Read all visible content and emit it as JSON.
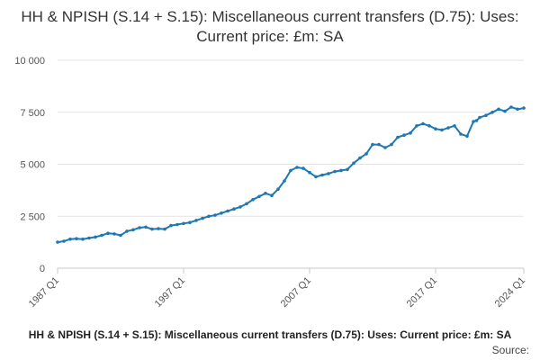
{
  "chart_data": {
    "type": "line",
    "title": "HH & NPISH (S.14 + S.15): Miscellaneous current transfers (D.75): Uses: Current price: £m: SA",
    "xlabel": "",
    "ylabel": "",
    "ylim": [
      0,
      10000
    ],
    "yticks": [
      "0",
      "2 500",
      "5 000",
      "7 500",
      "10 000"
    ],
    "ytick_values": [
      0,
      2500,
      5000,
      7500,
      10000
    ],
    "xticks": [
      "1987 Q1",
      "1997 Q1",
      "2007 Q1",
      "2017 Q1",
      "2024 Q1"
    ],
    "xtick_values": [
      1987.0,
      1997.0,
      2007.0,
      2017.0,
      2024.0
    ],
    "xlim": [
      1987.0,
      2024.0
    ],
    "grid": "horizontal",
    "legend": "none",
    "series_color": "#1f78b4",
    "series": [
      {
        "x": [
          1987.0,
          1987.5,
          1988.0,
          1988.5,
          1989.0,
          1989.5,
          1990.0,
          1990.5,
          1991.0,
          1991.5,
          1992.0,
          1992.5,
          1993.0,
          1993.5,
          1994.0,
          1994.5,
          1995.0,
          1995.5,
          1996.0,
          1996.5,
          1997.0,
          1997.5,
          1998.0,
          1998.5,
          1999.0,
          1999.5,
          2000.0,
          2000.5,
          2001.0,
          2001.5,
          2002.0,
          2002.5,
          2003.0,
          2003.5,
          2004.0,
          2004.5,
          2005.0,
          2005.5,
          2006.0,
          2006.5,
          2007.0,
          2007.5,
          2008.0,
          2008.5,
          2009.0,
          2009.5,
          2010.0,
          2010.5,
          2011.0,
          2011.5,
          2012.0,
          2012.5,
          2013.0,
          2013.5,
          2014.0,
          2014.5,
          2015.0,
          2015.5,
          2016.0,
          2016.5,
          2017.0,
          2017.5,
          2018.0,
          2018.5,
          2019.0,
          2019.5,
          2020.0,
          2020.25,
          2020.5,
          2021.0,
          2021.5,
          2022.0,
          2022.5,
          2023.0,
          2023.5,
          2024.0
        ],
        "values": [
          1250,
          1300,
          1400,
          1420,
          1400,
          1450,
          1500,
          1580,
          1680,
          1650,
          1580,
          1780,
          1850,
          1950,
          1980,
          1880,
          1900,
          1880,
          2050,
          2100,
          2150,
          2200,
          2300,
          2400,
          2500,
          2550,
          2650,
          2750,
          2850,
          2950,
          3100,
          3300,
          3450,
          3600,
          3500,
          3800,
          4200,
          4700,
          4850,
          4800,
          4600,
          4400,
          4480,
          4550,
          4650,
          4700,
          4750,
          5050,
          5300,
          5500,
          5950,
          5950,
          5800,
          5950,
          6300,
          6400,
          6500,
          6850,
          6950,
          6850,
          6700,
          6650,
          6750,
          6850,
          6450,
          6350,
          7050,
          7100,
          7250,
          7350,
          7500,
          7650,
          7550,
          7750,
          7650,
          7700
        ]
      }
    ]
  },
  "footer": {
    "caption": "HH & NPISH (S.14 + S.15): Miscellaneous current transfers (D.75): Uses: Current price: £m: SA",
    "source_label": "Source:"
  }
}
